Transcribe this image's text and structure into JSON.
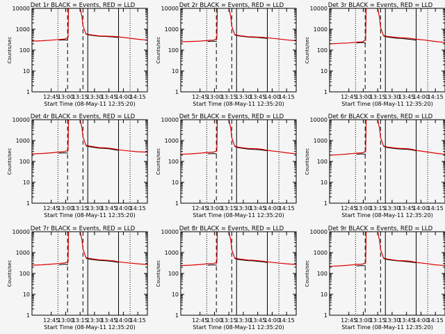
{
  "figure": {
    "background": "#f5f5f5",
    "events_color": "#000000",
    "lld_color": "#dd0000"
  },
  "chart_data": {
    "type": "line",
    "layout": "3x3 grid",
    "title_suffix": " BLACK = Events, RED = LLD",
    "xlabel": "Start Time (08-May-11 12:35:20)",
    "ylabel": "Counts/sec",
    "yscale": "log",
    "ylim": [
      1,
      10000
    ],
    "yticks": [
      "1",
      "10",
      "100",
      "1000",
      "10000"
    ],
    "xlim_minutes": [
      -20,
      100
    ],
    "xticks": [
      {
        "label": "12:45",
        "min": 0
      },
      {
        "label": "13:00",
        "min": 15
      },
      {
        "label": "13:15",
        "min": 30
      },
      {
        "label": "13:30",
        "min": 45
      },
      {
        "label": "13:45",
        "min": 60
      },
      {
        "label": "14:00",
        "min": 75
      },
      {
        "label": "14:15",
        "min": 90
      }
    ],
    "markers": {
      "dotted": [
        7,
        82
      ],
      "dashed": [
        17,
        33
      ],
      "solid": [
        38,
        70
      ]
    },
    "series_x": [
      -20,
      -10,
      0,
      8,
      14,
      17.5,
      18,
      20,
      28,
      30,
      32,
      33,
      36,
      40,
      50,
      55,
      60,
      65,
      70,
      80,
      90,
      100
    ],
    "panels": [
      {
        "det": "Det 1r",
        "lld": [
          270,
          280,
          300,
          320,
          340,
          400,
          10000,
          11000,
          11000,
          10000,
          4000,
          1500,
          600,
          550,
          480,
          470,
          460,
          450,
          430,
          380,
          330,
          300
        ],
        "events": [
          null,
          null,
          null,
          300,
          310,
          300,
          null,
          null,
          null,
          null,
          null,
          null,
          580,
          520,
          460,
          450,
          440,
          420,
          400,
          null,
          null,
          null
        ]
      },
      {
        "det": "Det 2r",
        "lld": [
          250,
          260,
          270,
          290,
          300,
          350,
          10000,
          11000,
          11000,
          10000,
          4000,
          1400,
          560,
          500,
          440,
          430,
          420,
          410,
          390,
          350,
          310,
          280
        ],
        "events": [
          null,
          null,
          null,
          260,
          270,
          260,
          null,
          null,
          null,
          null,
          null,
          null,
          530,
          480,
          420,
          410,
          400,
          380,
          360,
          null,
          null,
          null
        ]
      },
      {
        "det": "Det 3r",
        "lld": [
          200,
          210,
          220,
          240,
          250,
          300,
          10000,
          11000,
          11000,
          10000,
          3500,
          1200,
          500,
          450,
          400,
          390,
          380,
          360,
          330,
          300,
          260,
          230
        ],
        "events": [
          null,
          null,
          null,
          220,
          230,
          220,
          null,
          null,
          null,
          null,
          null,
          null,
          470,
          420,
          370,
          360,
          340,
          320,
          300,
          null,
          null,
          null
        ]
      },
      {
        "det": "Det 4r",
        "lld": [
          230,
          240,
          260,
          280,
          300,
          340,
          10000,
          11000,
          11000,
          10000,
          4000,
          1500,
          600,
          540,
          460,
          450,
          430,
          400,
          360,
          320,
          290,
          280
        ],
        "events": [
          null,
          null,
          null,
          250,
          260,
          250,
          null,
          null,
          null,
          null,
          null,
          null,
          560,
          500,
          430,
          420,
          400,
          370,
          340,
          null,
          null,
          null
        ]
      },
      {
        "det": "Det 5r",
        "lld": [
          220,
          230,
          250,
          270,
          280,
          320,
          10000,
          11000,
          11000,
          10000,
          3800,
          1400,
          550,
          480,
          420,
          410,
          400,
          380,
          340,
          300,
          260,
          230
        ],
        "events": [
          null,
          null,
          null,
          230,
          240,
          230,
          null,
          null,
          null,
          null,
          null,
          null,
          520,
          450,
          390,
          380,
          370,
          350,
          320,
          null,
          null,
          null
        ]
      },
      {
        "det": "Det 6r",
        "lld": [
          200,
          210,
          230,
          250,
          260,
          300,
          10000,
          11000,
          11000,
          10000,
          3800,
          1400,
          560,
          490,
          430,
          420,
          410,
          390,
          340,
          290,
          250,
          220
        ],
        "events": [
          null,
          null,
          null,
          220,
          230,
          220,
          null,
          null,
          null,
          null,
          null,
          null,
          530,
          460,
          400,
          390,
          380,
          360,
          320,
          null,
          null,
          null
        ]
      },
      {
        "det": "Det 7r",
        "lld": [
          250,
          260,
          280,
          300,
          320,
          360,
          10000,
          11000,
          11000,
          10000,
          4000,
          1500,
          580,
          520,
          450,
          440,
          420,
          400,
          360,
          320,
          290,
          270
        ],
        "events": [
          null,
          null,
          null,
          260,
          280,
          260,
          null,
          null,
          null,
          null,
          null,
          null,
          540,
          480,
          420,
          410,
          390,
          370,
          340,
          null,
          null,
          null
        ]
      },
      {
        "det": "Det 8r",
        "lld": [
          240,
          250,
          270,
          290,
          300,
          340,
          10000,
          11000,
          11000,
          10000,
          3900,
          1400,
          560,
          500,
          440,
          430,
          410,
          390,
          360,
          320,
          290,
          270
        ],
        "events": [
          null,
          null,
          null,
          250,
          260,
          250,
          null,
          null,
          null,
          null,
          null,
          null,
          520,
          460,
          410,
          400,
          380,
          360,
          330,
          null,
          null,
          null
        ]
      },
      {
        "det": "Det 9r",
        "lld": [
          220,
          230,
          250,
          270,
          280,
          320,
          10000,
          11000,
          11000,
          10000,
          3800,
          1400,
          560,
          490,
          420,
          410,
          400,
          380,
          340,
          300,
          260,
          240
        ],
        "events": [
          null,
          null,
          null,
          230,
          240,
          230,
          null,
          null,
          null,
          null,
          null,
          null,
          520,
          460,
          400,
          390,
          370,
          350,
          320,
          null,
          null,
          null
        ]
      }
    ]
  }
}
